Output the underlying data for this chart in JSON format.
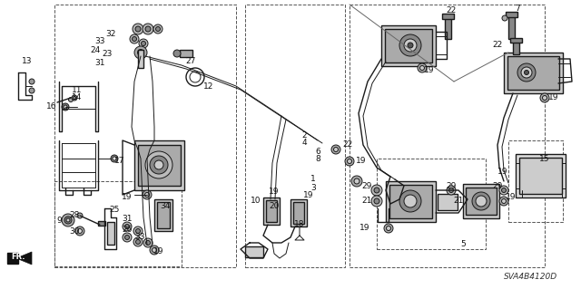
{
  "background_color": "#ffffff",
  "fig_width": 6.4,
  "fig_height": 3.19,
  "dpi": 100,
  "diagram_code": "SVA4B4120D"
}
